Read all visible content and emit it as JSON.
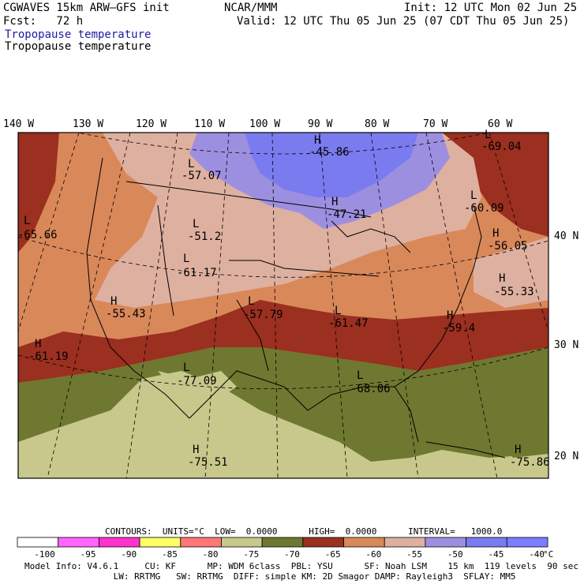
{
  "header": {
    "model_title": "CGWAVES 15km ARW–GFS init",
    "org": "NCAR/MMM",
    "init": "Init: 12 UTC Mon 02 Jun 25",
    "fcst": "Fcst:   72 h",
    "valid": "Valid: 12 UTC Thu 05 Jun 25 (07 CDT Thu 05 Jun 25)",
    "field_title_blue": "Tropopause temperature",
    "field_title_black": "Tropopause temperature"
  },
  "longitude_labels": [
    "140 W",
    "130 W",
    "120 W",
    "110 W",
    "100 W",
    "90 W",
    "80 W",
    "70 W",
    "60 W"
  ],
  "latitude_labels": [
    "40 N",
    "30 N",
    "20 N"
  ],
  "extrema": [
    {
      "type": "L",
      "value": "-57.07"
    },
    {
      "type": "H",
      "value": "-45.86"
    },
    {
      "type": "L",
      "value": "-69.04"
    },
    {
      "type": "L",
      "value": "-65.66"
    },
    {
      "type": "L",
      "value": "-51.2"
    },
    {
      "type": "H",
      "value": "-47.21"
    },
    {
      "type": "L",
      "value": "-60.09"
    },
    {
      "type": "H",
      "value": "-56.05"
    },
    {
      "type": "L",
      "value": "-61.17"
    },
    {
      "type": "H",
      "value": "-55.33"
    },
    {
      "type": "H",
      "value": "-55.43"
    },
    {
      "type": "L",
      "value": "-57.79"
    },
    {
      "type": "L",
      "value": "-61.47"
    },
    {
      "type": "H",
      "value": "-59.4"
    },
    {
      "type": "H",
      "value": "-61.19"
    },
    {
      "type": "L",
      "value": "-77.09"
    },
    {
      "type": "L",
      "value": "-68.06"
    },
    {
      "type": "H",
      "value": "-75.51"
    },
    {
      "type": "H",
      "value": "-75.86"
    }
  ],
  "contours_line": "CONTOURS:  UNITS=°C  LOW=  0.0000      HIGH=  0.0000      INTERVAL=   1000.0",
  "colorbar": {
    "labels": [
      "-100",
      "-95",
      "-90",
      "-85",
      "-80",
      "-75",
      "-70",
      "-65",
      "-60",
      "-55",
      "-50",
      "-45",
      "-40"
    ],
    "unit": "°C",
    "colors": [
      "#ffffff",
      "#ff66ff",
      "#ff33cc",
      "#ffff66",
      "#ff7777",
      "#c8c88c",
      "#6e7830",
      "#9b2f20",
      "#d9885a",
      "#deb0a0",
      "#9d8fe0",
      "#7b7bf0",
      "#7d7dff"
    ]
  },
  "footer": {
    "line1": "Model Info: V4.6.1     CU: KF      MP: WDM 6class  PBL: YSU      SF: Noah LSM    15 km  119 levels  90 sec",
    "line2": "                 LW: RRTMG   SW: RRTMG  DIFF: simple KM: 2D Smagor DAMP: Rayleigh3  SFLAY: MM5"
  }
}
